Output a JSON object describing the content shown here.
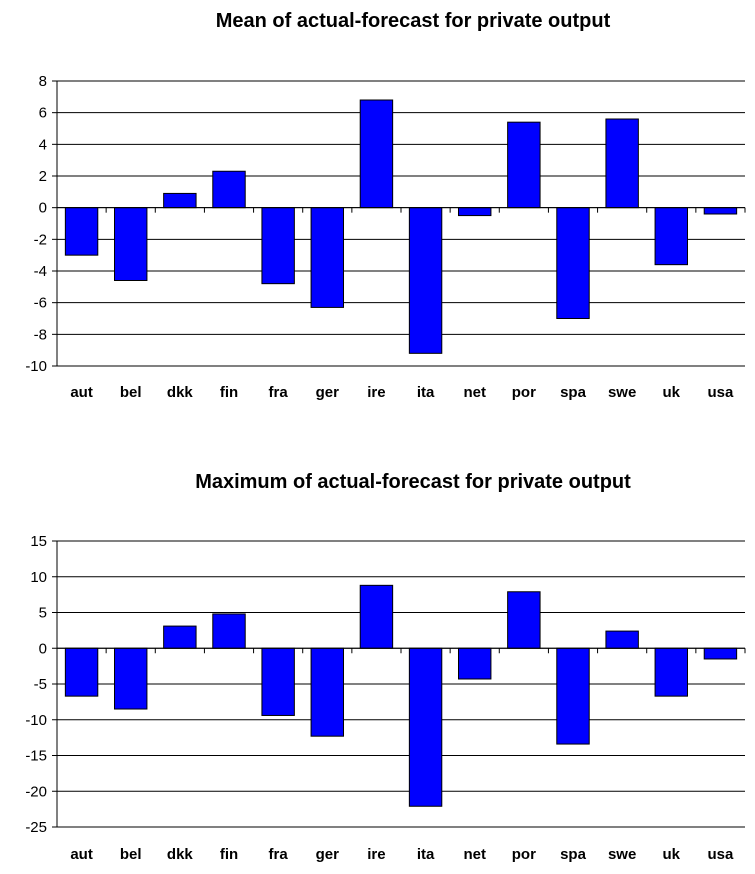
{
  "chart_data": [
    {
      "type": "bar",
      "title": "Mean of actual-forecast for private output",
      "categories": [
        "aut",
        "bel",
        "dkk",
        "fin",
        "fra",
        "ger",
        "ire",
        "ita",
        "net",
        "por",
        "spa",
        "swe",
        "uk",
        "usa"
      ],
      "values": [
        -3.0,
        -4.6,
        0.9,
        2.3,
        -4.8,
        -6.3,
        6.8,
        -9.2,
        -0.5,
        5.4,
        -7.0,
        5.6,
        -3.6,
        -0.4
      ],
      "ylim": [
        -10,
        8
      ],
      "yticks": [
        8,
        6,
        4,
        2,
        0,
        -2,
        -4,
        -6,
        -8,
        -10
      ],
      "grid": true,
      "bar_color": "#0000FF"
    },
    {
      "type": "bar",
      "title": "Maximum of actual-forecast for private output",
      "categories": [
        "aut",
        "bel",
        "dkk",
        "fin",
        "fra",
        "ger",
        "ire",
        "ita",
        "net",
        "por",
        "spa",
        "swe",
        "uk",
        "usa"
      ],
      "values": [
        -6.7,
        -8.5,
        3.1,
        4.8,
        -9.4,
        -12.3,
        8.8,
        -22.1,
        -4.3,
        7.9,
        -13.4,
        2.4,
        -6.7,
        -1.5
      ],
      "ylim": [
        -25,
        15
      ],
      "yticks": [
        15,
        10,
        5,
        0,
        -5,
        -10,
        -15,
        -20,
        -25
      ],
      "grid": true,
      "bar_color": "#0000FF"
    }
  ]
}
